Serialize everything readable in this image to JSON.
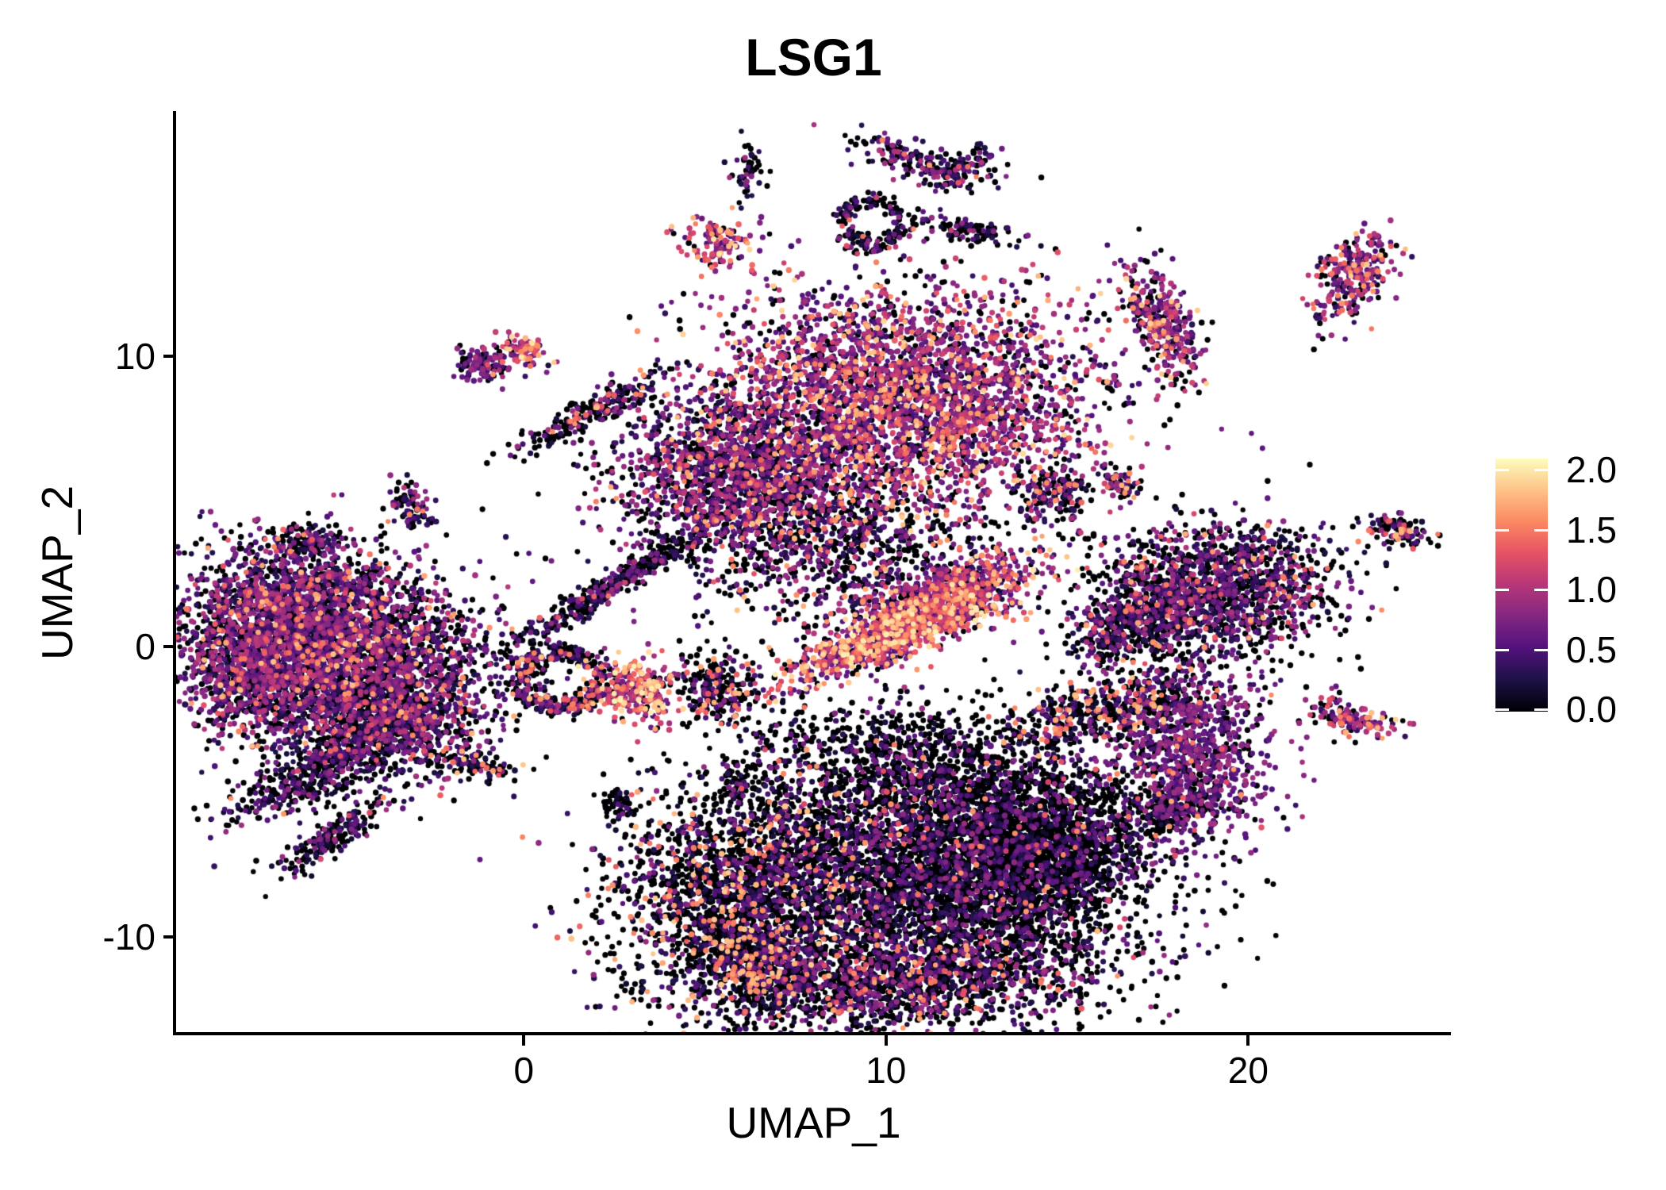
{
  "title": "LSG1",
  "x_axis": {
    "label": "UMAP_1",
    "ticks": [
      "0",
      "10",
      "20"
    ],
    "tick_values": [
      0,
      10,
      20
    ],
    "range": [
      -9.6,
      25.6
    ]
  },
  "y_axis": {
    "label": "UMAP_2",
    "ticks": [
      "-10",
      "0",
      "10"
    ],
    "tick_values": [
      -10,
      0,
      10
    ],
    "range": [
      -13.35,
      18.4
    ]
  },
  "colorbar": {
    "tick_labels": [
      "2.0",
      "1.5",
      "1.0",
      "0.5",
      "0.0"
    ],
    "tick_values": [
      2.0,
      1.5,
      1.0,
      0.5,
      0.0
    ],
    "vmin": 0.0,
    "vmax": 2.0,
    "colormap": "magma",
    "stops": [
      {
        "t": 0.0,
        "c": "#000004"
      },
      {
        "t": 0.125,
        "c": "#1D1147"
      },
      {
        "t": 0.25,
        "c": "#51127C"
      },
      {
        "t": 0.375,
        "c": "#822681"
      },
      {
        "t": 0.5,
        "c": "#B63679"
      },
      {
        "t": 0.625,
        "c": "#E65164"
      },
      {
        "t": 0.75,
        "c": "#FB8861"
      },
      {
        "t": 0.875,
        "c": "#FEC287"
      },
      {
        "t": 1.0,
        "c": "#FCFDBF"
      }
    ]
  },
  "chart_data": {
    "type": "scatter",
    "title": "LSG1",
    "xlabel": "UMAP_1",
    "ylabel": "UMAP_2",
    "x_range": [
      -9.6,
      25.6
    ],
    "y_range": [
      -13.35,
      18.4
    ],
    "grid": false,
    "legend_position": "right",
    "point_radius": 3.4,
    "seed": 1337,
    "expression_profiles": {
      "purple": {
        "p0": 0.28,
        "vmin": 0.35,
        "vmax": 0.95,
        "pow": 1.2,
        "pHi": 0.03,
        "hiMin": 1.15,
        "hiMax": 1.6
      },
      "mid": {
        "p0": 0.36,
        "vmin": 0.2,
        "vmax": 1.05,
        "pow": 1.25,
        "pHi": 0.06,
        "hiMin": 1.15,
        "hiMax": 1.75
      },
      "middark": {
        "p0": 0.46,
        "vmin": 0.2,
        "vmax": 1.0,
        "pow": 1.4,
        "pHi": 0.04,
        "hiMin": 1.15,
        "hiMax": 1.7
      },
      "dark": {
        "p0": 0.58,
        "vmin": 0.15,
        "vmax": 0.9,
        "pow": 1.6,
        "pHi": 0.02,
        "hiMin": 1.1,
        "hiMax": 1.65
      },
      "vdark": {
        "p0": 0.74,
        "vmin": 0.1,
        "vmax": 0.75,
        "pow": 1.7,
        "pHi": 0.012,
        "hiMin": 1.1,
        "hiMax": 1.55
      },
      "darkhi": {
        "p0": 0.52,
        "vmin": 0.2,
        "vmax": 0.95,
        "pow": 1.45,
        "pHi": 0.09,
        "hiMin": 1.2,
        "hiMax": 1.75
      },
      "blackhot": {
        "p0": 0.58,
        "vmin": 0.15,
        "vmax": 0.85,
        "pow": 1.5,
        "pHi": 0.13,
        "hiMin": 1.25,
        "hiMax": 1.8
      },
      "bright": {
        "p0": 0.22,
        "vmin": 0.3,
        "vmax": 1.15,
        "pow": 1.05,
        "pHi": 0.15,
        "hiMin": 1.2,
        "hiMax": 1.85
      },
      "hot": {
        "p0": 0.13,
        "vmin": 0.4,
        "vmax": 1.3,
        "pow": 1.0,
        "pHi": 0.28,
        "hiMin": 1.25,
        "hiMax": 1.95
      }
    },
    "clusters": [
      {
        "id": "left-main-top",
        "cx": -6.2,
        "cy": 1.3,
        "sx": 1.7,
        "sy": 1.3,
        "rot": 0,
        "n": 1500,
        "expr": "mid"
      },
      {
        "id": "left-main-mid",
        "cx": -4.7,
        "cy": -0.6,
        "sx": 2.0,
        "sy": 1.5,
        "rot": -10,
        "n": 2200,
        "expr": "mid"
      },
      {
        "id": "left-main-west",
        "cx": -7.4,
        "cy": -0.9,
        "sx": 0.95,
        "sy": 1.1,
        "rot": 0,
        "n": 850,
        "expr": "mid"
      },
      {
        "id": "left-main-se",
        "cx": -3.6,
        "cy": -2.6,
        "sx": 1.2,
        "sy": 0.9,
        "rot": -20,
        "n": 750,
        "expr": "middark"
      },
      {
        "id": "left-tail",
        "cx": -5.6,
        "cy": -4.2,
        "sx": 1.5,
        "sy": 0.55,
        "rot": 35,
        "n": 500,
        "expr": "dark"
      },
      {
        "id": "left-tail-tip",
        "cx": -5.2,
        "cy": -6.5,
        "sx": 1.0,
        "sy": 0.28,
        "rot": 40,
        "n": 200,
        "expr": "dark"
      },
      {
        "id": "donut",
        "cx": 1.05,
        "cy": -1.15,
        "shape": "ring",
        "rx": 1.1,
        "ry": 0.95,
        "w": 0.17,
        "rot": 0,
        "n": 380,
        "expr": "darkhi"
      },
      {
        "id": "small-hot-a",
        "cx": 3.05,
        "cy": -1.55,
        "sx": 0.6,
        "sy": 0.5,
        "rot": -15,
        "n": 300,
        "expr": "hot"
      },
      {
        "id": "small-blackhot",
        "cx": 5.4,
        "cy": -1.5,
        "sx": 0.5,
        "sy": 0.65,
        "rot": 10,
        "n": 260,
        "expr": "blackhot"
      },
      {
        "id": "streak",
        "cx": 2.6,
        "cy": 2.2,
        "sx": 1.9,
        "sy": 0.22,
        "rot": 38,
        "n": 430,
        "expr": "dark"
      },
      {
        "id": "topmid-west",
        "cx": 6.0,
        "cy": 5.9,
        "sx": 1.8,
        "sy": 1.5,
        "rot": 0,
        "n": 1900,
        "expr": "mid"
      },
      {
        "id": "topmid-main",
        "cx": 10.6,
        "cy": 8.6,
        "sx": 2.6,
        "sy": 1.9,
        "rot": -8,
        "n": 3300,
        "expr": "bright"
      },
      {
        "id": "topmid-scatter",
        "cx": 9.0,
        "cy": 3.3,
        "sx": 2.1,
        "sy": 1.5,
        "rot": 0,
        "n": 750,
        "expr": "darkhi"
      },
      {
        "id": "wing",
        "cx": 10.4,
        "cy": 0.5,
        "sx": 1.75,
        "sy": 0.42,
        "rot": 27,
        "n": 1150,
        "expr": "hot"
      },
      {
        "id": "wing-upper",
        "cx": 11.6,
        "cy": 2.0,
        "sx": 1.4,
        "sy": 0.4,
        "rot": 22,
        "n": 520,
        "expr": "bright"
      },
      {
        "id": "tiny-north",
        "cx": 6.2,
        "cy": 16.3,
        "sx": 0.22,
        "sy": 0.5,
        "rot": 0,
        "n": 50,
        "expr": "dark"
      },
      {
        "id": "hook-a",
        "cx": 10.7,
        "cy": 16.8,
        "sx": 1.0,
        "sy": 0.28,
        "rot": -20,
        "n": 150,
        "expr": "middark"
      },
      {
        "id": "hook-b",
        "cx": 12.0,
        "cy": 16.4,
        "sx": 0.55,
        "sy": 0.25,
        "rot": 35,
        "n": 90,
        "expr": "middark"
      },
      {
        "id": "loop",
        "cx": 9.6,
        "cy": 14.6,
        "shape": "ring",
        "rx": 0.75,
        "ry": 0.85,
        "w": 0.2,
        "rot": 0,
        "n": 170,
        "expr": "dark"
      },
      {
        "id": "loop-tail",
        "cx": 12.0,
        "cy": 14.4,
        "sx": 0.8,
        "sy": 0.2,
        "rot": -15,
        "n": 110,
        "expr": "dark"
      },
      {
        "id": "small-hot-b",
        "cx": 5.4,
        "cy": 13.9,
        "sx": 0.5,
        "sy": 0.45,
        "rot": 0,
        "n": 130,
        "expr": "hot"
      },
      {
        "id": "ne-strip",
        "cx": 17.6,
        "cy": 11.2,
        "sx": 0.42,
        "sy": 1.05,
        "rot": 18,
        "n": 330,
        "expr": "bright"
      },
      {
        "id": "far-ne",
        "cx": 22.9,
        "cy": 12.7,
        "sx": 0.45,
        "sy": 0.85,
        "rot": -25,
        "n": 270,
        "expr": "bright"
      },
      {
        "id": "mid-right-a",
        "cx": 14.8,
        "cy": 5.3,
        "sx": 0.5,
        "sy": 0.5,
        "rot": 0,
        "n": 140,
        "expr": "darkhi"
      },
      {
        "id": "mid-right-b",
        "cx": 16.5,
        "cy": 5.6,
        "sx": 0.28,
        "sy": 0.28,
        "rot": 0,
        "n": 60,
        "expr": "darkhi"
      },
      {
        "id": "far-east-a",
        "cx": 24.2,
        "cy": 4.0,
        "sx": 0.5,
        "sy": 0.25,
        "rot": -20,
        "n": 110,
        "expr": "darkhi"
      },
      {
        "id": "right-main",
        "cx": 19.0,
        "cy": 1.9,
        "sx": 1.8,
        "sy": 1.15,
        "rot": 8,
        "n": 1600,
        "expr": "middark"
      },
      {
        "id": "right-main-tail",
        "cx": 17.3,
        "cy": 0.9,
        "sx": 0.6,
        "sy": 0.5,
        "rot": -30,
        "n": 200,
        "expr": "dark"
      },
      {
        "id": "right-small",
        "cx": 16.1,
        "cy": 0.4,
        "sx": 0.5,
        "sy": 0.55,
        "rot": 0,
        "n": 150,
        "expr": "middark"
      },
      {
        "id": "right-arm",
        "cx": 16.2,
        "cy": -2.2,
        "sx": 1.35,
        "sy": 0.5,
        "rot": 15,
        "n": 450,
        "expr": "blackhot"
      },
      {
        "id": "right-south",
        "cx": 18.5,
        "cy": -3.6,
        "sx": 1.05,
        "sy": 1.45,
        "rot": 10,
        "n": 950,
        "expr": "purple"
      },
      {
        "id": "right-south-tail",
        "cx": 17.9,
        "cy": -5.6,
        "sx": 0.7,
        "sy": 0.4,
        "rot": 25,
        "n": 180,
        "expr": "dark"
      },
      {
        "id": "far-east-b",
        "cx": 22.8,
        "cy": -2.5,
        "sx": 0.6,
        "sy": 0.3,
        "rot": -20,
        "n": 150,
        "expr": "bright"
      },
      {
        "id": "bottom-west",
        "cx": 5.9,
        "cy": -8.4,
        "sx": 1.8,
        "sy": 1.8,
        "rot": 0,
        "n": 1700,
        "expr": "blackhot"
      },
      {
        "id": "bottom-scatter",
        "cx": 10.2,
        "cy": -3.8,
        "sx": 2.1,
        "sy": 1.0,
        "rot": -5,
        "n": 620,
        "expr": "vdark"
      },
      {
        "id": "bottom-main",
        "cx": 11.2,
        "cy": -7.8,
        "sx": 2.9,
        "sy": 2.3,
        "rot": 0,
        "n": 4300,
        "expr": "dark"
      },
      {
        "id": "bottom-east",
        "cx": 13.7,
        "cy": -7.0,
        "sx": 1.5,
        "sy": 1.6,
        "rot": 0,
        "n": 1500,
        "expr": "vdark"
      },
      {
        "id": "bottom-band",
        "cx": 10.2,
        "cy": -11.6,
        "sx": 2.8,
        "sy": 0.85,
        "rot": 3,
        "n": 1300,
        "expr": "darkhi"
      },
      {
        "id": "bottom-sw-hook",
        "cx": 6.3,
        "cy": -11.0,
        "sx": 1.0,
        "sy": 0.65,
        "rot": -15,
        "n": 400,
        "expr": "blackhot"
      },
      {
        "id": "bottom-se",
        "cx": 15.4,
        "cy": -6.9,
        "sx": 0.9,
        "sy": 0.9,
        "rot": 0,
        "n": 380,
        "expr": "vdark"
      },
      {
        "id": "dash-west",
        "cx": -1.3,
        "cy": -4.1,
        "sx": 0.55,
        "sy": 0.22,
        "rot": -15,
        "n": 90,
        "expr": "blackhot"
      },
      {
        "id": "dot-a",
        "cx": 5.9,
        "cy": -4.8,
        "sx": 0.25,
        "sy": 0.5,
        "rot": 0,
        "n": 60,
        "expr": "vdark"
      },
      {
        "id": "dot-b",
        "cx": 2.6,
        "cy": -5.4,
        "sx": 0.3,
        "sy": 0.25,
        "rot": 0,
        "n": 55,
        "expr": "vdark"
      },
      {
        "id": "nw-purple",
        "cx": -1.2,
        "cy": 9.7,
        "sx": 0.42,
        "sy": 0.3,
        "rot": -10,
        "n": 100,
        "expr": "purple"
      },
      {
        "id": "nw-hot",
        "cx": -0.1,
        "cy": 10.2,
        "sx": 0.4,
        "sy": 0.25,
        "rot": -15,
        "n": 85,
        "expr": "hot"
      },
      {
        "id": "nw-strip",
        "cx": 1.9,
        "cy": 8.1,
        "sx": 1.15,
        "sy": 0.24,
        "rot": 33,
        "n": 230,
        "expr": "darkhi"
      },
      {
        "id": "west-dot-a",
        "cx": -3.1,
        "cy": 4.9,
        "sx": 0.3,
        "sy": 0.5,
        "rot": 15,
        "n": 85,
        "expr": "middark"
      },
      {
        "id": "west-dot-b",
        "cx": -6.0,
        "cy": 3.6,
        "sx": 0.45,
        "sy": 0.35,
        "rot": 0,
        "n": 100,
        "expr": "middark"
      }
    ]
  }
}
